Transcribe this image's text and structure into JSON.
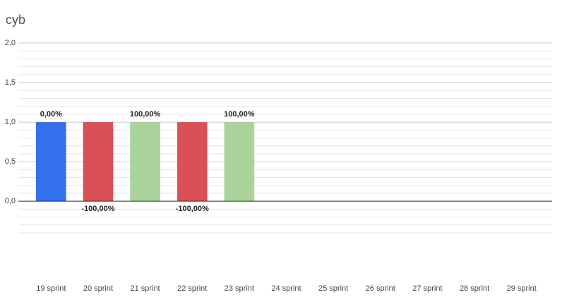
{
  "chart_data": {
    "type": "bar",
    "title": "cyb",
    "categories": [
      "19 sprint",
      "20 sprint",
      "21 sprint",
      "22 sprint",
      "23 sprint",
      "24 sprint",
      "25 sprint",
      "26 sprint",
      "27 sprint",
      "28 sprint",
      "29 sprint"
    ],
    "values": [
      1,
      1,
      1,
      1,
      1,
      null,
      null,
      null,
      null,
      null,
      null
    ],
    "colors": [
      "#3370eb",
      "#d95155",
      "#a9d39a",
      "#d95155",
      "#a9d39a",
      null,
      null,
      null,
      null,
      null,
      null
    ],
    "annotations": [
      "0,00%",
      "-100,00%",
      "100,00%",
      "-100,00%",
      "100,00%",
      null,
      null,
      null,
      null,
      null,
      null
    ],
    "ylim": [
      -0.4,
      2
    ],
    "yticks": [
      {
        "value": 0,
        "label": "0,0"
      },
      {
        "value": 0.5,
        "label": "0,5"
      },
      {
        "value": 1,
        "label": "1,0"
      },
      {
        "value": 1.5,
        "label": "1,5"
      },
      {
        "value": 2,
        "label": "2,0"
      }
    ],
    "yminorticks": [
      -0.4,
      -0.3,
      -0.2,
      -0.1,
      0.1,
      0.2,
      0.3,
      0.4,
      0.6,
      0.7,
      0.8,
      0.9,
      1.1,
      1.2,
      1.3,
      1.4,
      1.6,
      1.7,
      1.8,
      1.9
    ],
    "grid": true
  }
}
